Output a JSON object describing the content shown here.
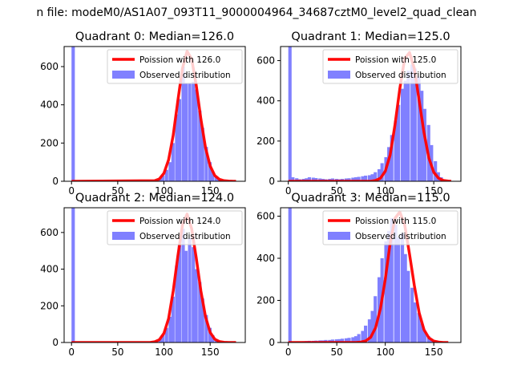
{
  "suptitle": "n file: modeM0/AS1A07_093T11_9000004964_34687cztM0_level2_quad_clean",
  "colors": {
    "poisson": "#ff0000",
    "observed": "#8080ff",
    "axes": "#000000",
    "background": "#ffffff"
  },
  "chart_data": [
    {
      "type": "bar",
      "title": "Quadrant 0: Median=126.0",
      "xlabel": "",
      "ylabel": "",
      "xlim": [
        -8,
        188
      ],
      "ylim": [
        0,
        705
      ],
      "xticks": [
        0,
        50,
        100,
        150
      ],
      "yticks": [
        0,
        200,
        400,
        600
      ],
      "grid": false,
      "legend_position": "top-right",
      "series": [
        {
          "name": "Poission with 126.0",
          "kind": "line",
          "x": [
            0,
            90,
            95,
            100,
            105,
            110,
            115,
            120,
            125,
            130,
            135,
            140,
            145,
            150,
            155,
            160,
            165,
            170,
            175,
            178
          ],
          "values": [
            0,
            3,
            12,
            42,
            112,
            240,
            420,
            590,
            680,
            640,
            500,
            325,
            175,
            80,
            30,
            10,
            3,
            1,
            0,
            0
          ]
        },
        {
          "name": "Observed distribution",
          "kind": "histogram",
          "bin_width": 3.6,
          "x": [
            0,
            90,
            94,
            97,
            101,
            105,
            108,
            112,
            115,
            119,
            122,
            126,
            130,
            133,
            137,
            140,
            144,
            148,
            151,
            155,
            158,
            162
          ],
          "values": [
            705,
            5,
            15,
            30,
            60,
            100,
            200,
            350,
            430,
            600,
            510,
            510,
            520,
            480,
            370,
            280,
            180,
            100,
            50,
            25,
            10,
            5
          ]
        }
      ]
    },
    {
      "type": "bar",
      "title": "Quadrant 1: Median=125.0",
      "xlabel": "",
      "ylabel": "",
      "xlim": [
        -8,
        178
      ],
      "ylim": [
        0,
        670
      ],
      "xticks": [
        0,
        50,
        100,
        150
      ],
      "yticks": [
        0,
        200,
        400,
        600
      ],
      "grid": false,
      "legend_position": "top-right",
      "series": [
        {
          "name": "Poission with 125.0",
          "kind": "line",
          "x": [
            0,
            85,
            90,
            95,
            100,
            105,
            110,
            115,
            120,
            125,
            130,
            135,
            140,
            145,
            150,
            155,
            160,
            165,
            168
          ],
          "values": [
            0,
            0,
            4,
            15,
            50,
            130,
            280,
            460,
            610,
            640,
            560,
            400,
            240,
            115,
            45,
            15,
            4,
            1,
            0
          ]
        },
        {
          "name": "Observed distribution",
          "kind": "histogram",
          "bin_width": 3.4,
          "x": [
            0,
            3,
            7,
            10,
            14,
            17,
            20,
            24,
            27,
            31,
            34,
            37,
            41,
            44,
            48,
            51,
            54,
            58,
            61,
            65,
            68,
            71,
            75,
            78,
            82,
            85,
            88,
            92,
            95,
            99,
            102,
            105,
            109,
            112,
            116,
            119,
            122,
            126,
            129,
            133,
            136,
            139,
            143,
            146,
            150,
            153,
            156,
            160,
            163
          ],
          "values": [
            670,
            20,
            15,
            10,
            12,
            15,
            20,
            18,
            16,
            14,
            12,
            10,
            12,
            14,
            12,
            10,
            12,
            14,
            15,
            18,
            20,
            22,
            25,
            28,
            30,
            35,
            45,
            60,
            90,
            120,
            170,
            230,
            300,
            380,
            460,
            500,
            550,
            580,
            560,
            520,
            450,
            360,
            280,
            180,
            100,
            45,
            20,
            8,
            3
          ]
        }
      ]
    },
    {
      "type": "bar",
      "title": "Quadrant 2: Median=124.0",
      "xlabel": "",
      "ylabel": "",
      "xlim": [
        -8,
        188
      ],
      "ylim": [
        0,
        735
      ],
      "xticks": [
        0,
        50,
        100,
        150
      ],
      "yticks": [
        0,
        200,
        400,
        600
      ],
      "grid": false,
      "legend_position": "top-right",
      "series": [
        {
          "name": "Poission with 124.0",
          "kind": "line",
          "x": [
            0,
            85,
            90,
            95,
            100,
            105,
            110,
            115,
            120,
            125,
            130,
            135,
            140,
            145,
            150,
            155,
            160,
            165,
            170,
            178
          ],
          "values": [
            0,
            0,
            4,
            15,
            50,
            130,
            280,
            470,
            640,
            700,
            620,
            460,
            280,
            140,
            55,
            18,
            5,
            1,
            0,
            0
          ]
        },
        {
          "name": "Observed distribution",
          "kind": "histogram",
          "bin_width": 3.6,
          "x": [
            0,
            90,
            94,
            97,
            101,
            105,
            108,
            112,
            115,
            119,
            122,
            126,
            130,
            133,
            137,
            140,
            144,
            148,
            151,
            155,
            158
          ],
          "values": [
            735,
            5,
            20,
            40,
            80,
            140,
            250,
            420,
            530,
            620,
            500,
            570,
            520,
            400,
            330,
            240,
            150,
            80,
            40,
            15,
            5
          ]
        }
      ]
    },
    {
      "type": "bar",
      "title": "Quadrant 3: Median=115.0",
      "xlabel": "",
      "ylabel": "",
      "xlim": [
        -8,
        178
      ],
      "ylim": [
        0,
        640
      ],
      "xticks": [
        0,
        50,
        100,
        150
      ],
      "yticks": [
        0,
        200,
        400,
        600
      ],
      "grid": false,
      "legend_position": "top-right",
      "series": [
        {
          "name": "Poission with 115.0",
          "kind": "line",
          "x": [
            0,
            70,
            75,
            80,
            85,
            90,
            95,
            100,
            105,
            110,
            115,
            120,
            125,
            130,
            135,
            140,
            145,
            150,
            155,
            160,
            165
          ],
          "values": [
            0,
            0,
            2,
            8,
            25,
            70,
            160,
            300,
            470,
            590,
            620,
            560,
            420,
            270,
            140,
            60,
            22,
            7,
            2,
            0,
            0
          ]
        },
        {
          "name": "Observed distribution",
          "kind": "histogram",
          "bin_width": 3.4,
          "x": [
            0,
            3,
            7,
            10,
            14,
            17,
            20,
            24,
            27,
            31,
            34,
            37,
            41,
            44,
            48,
            51,
            54,
            58,
            61,
            65,
            68,
            71,
            75,
            78,
            82,
            85,
            88,
            92,
            95,
            99,
            102,
            105,
            109,
            112,
            116,
            119,
            122,
            126,
            129,
            133,
            136,
            139,
            143,
            146,
            150,
            153,
            156,
            160
          ],
          "values": [
            640,
            3,
            4,
            5,
            6,
            7,
            8,
            8,
            9,
            10,
            10,
            12,
            12,
            14,
            15,
            16,
            18,
            20,
            22,
            25,
            30,
            40,
            55,
            80,
            110,
            150,
            220,
            310,
            400,
            480,
            530,
            590,
            560,
            500,
            520,
            420,
            340,
            260,
            190,
            140,
            90,
            55,
            30,
            15,
            7,
            3,
            2,
            1
          ]
        }
      ]
    }
  ]
}
